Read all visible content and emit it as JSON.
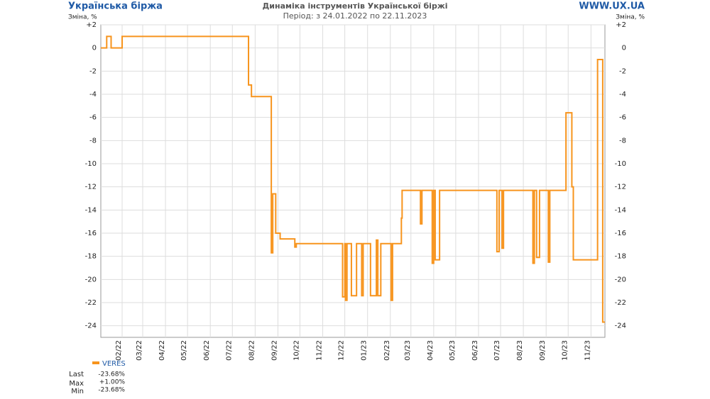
{
  "chart_data": {
    "type": "line",
    "brand": "Українська біржа",
    "site": "WWW.UX.UA",
    "title": "Динаміка інструментів Української біржі",
    "subtitle": "Період: з 24.01.2022 по 22.11.2023",
    "ylabel": "Зміна, %",
    "step": "after",
    "grid": true,
    "x": [
      "2022-01-03",
      "2022-01-11",
      "2022-01-17",
      "2022-02-01",
      "2022-07-23",
      "2022-07-27",
      "2022-08-23",
      "2022-08-25",
      "2022-08-29",
      "2022-09-04",
      "2022-09-24",
      "2022-09-26",
      "2022-11-28",
      "2022-12-01",
      "2022-12-02",
      "2022-12-04",
      "2022-12-10",
      "2022-12-17",
      "2022-12-24",
      "2022-12-26",
      "2023-01-05",
      "2023-01-13",
      "2023-01-15",
      "2023-01-19",
      "2023-02-02",
      "2023-02-04",
      "2023-02-16",
      "2023-02-17",
      "2023-03-14",
      "2023-03-16",
      "2023-03-30",
      "2023-04-01",
      "2023-04-03",
      "2023-04-09",
      "2023-06-26",
      "2023-06-29",
      "2023-07-03",
      "2023-07-05",
      "2023-08-14",
      "2023-08-16",
      "2023-08-19",
      "2023-08-23",
      "2023-09-04",
      "2023-09-06",
      "2023-09-28",
      "2023-10-06",
      "2023-10-08",
      "2023-11-10",
      "2023-11-17"
    ],
    "series": [
      {
        "name": "VERES",
        "color": "#f7941d",
        "values": [
          0,
          1,
          0,
          1,
          -3.2,
          -4.2,
          -17.7,
          -12.6,
          -16,
          -16.5,
          -17.2,
          -16.9,
          -21.5,
          -16.9,
          -21.8,
          -16.9,
          -21.4,
          -16.9,
          -21.4,
          -16.9,
          -21.4,
          -16.6,
          -21.4,
          -16.9,
          -21.8,
          -16.9,
          -14.7,
          -12.3,
          -15.2,
          -12.3,
          -18.6,
          -12.3,
          -18.3,
          -12.3,
          -17.6,
          -12.3,
          -17.3,
          -12.3,
          -18.6,
          -12.3,
          -18.1,
          -12.3,
          -18.5,
          -12.3,
          -5.6,
          -12,
          -18.3,
          -1,
          -23.68
        ]
      }
    ],
    "stats": [
      {
        "label": "Last",
        "value": "-23.68%"
      },
      {
        "label": "Max",
        "value": "+1.00%"
      },
      {
        "label": "Min",
        "value": "-23.68%"
      }
    ],
    "xlim": [
      "2022-01-03",
      "2023-11-20"
    ],
    "xticks": [
      {
        "value": "2022-02-01",
        "label": "02/22"
      },
      {
        "value": "2022-03-01",
        "label": "03/22"
      },
      {
        "value": "2022-04-01",
        "label": "04/22"
      },
      {
        "value": "2022-05-01",
        "label": "05/22"
      },
      {
        "value": "2022-06-01",
        "label": "06/22"
      },
      {
        "value": "2022-07-01",
        "label": "07/22"
      },
      {
        "value": "2022-08-01",
        "label": "08/22"
      },
      {
        "value": "2022-09-01",
        "label": "09/22"
      },
      {
        "value": "2022-10-01",
        "label": "10/22"
      },
      {
        "value": "2022-11-01",
        "label": "11/22"
      },
      {
        "value": "2022-12-01",
        "label": "12/22"
      },
      {
        "value": "2023-01-01",
        "label": "01/23"
      },
      {
        "value": "2023-02-01",
        "label": "02/23"
      },
      {
        "value": "2023-03-01",
        "label": "03/23"
      },
      {
        "value": "2023-04-01",
        "label": "04/23"
      },
      {
        "value": "2023-05-01",
        "label": "05/23"
      },
      {
        "value": "2023-06-01",
        "label": "06/23"
      },
      {
        "value": "2023-07-01",
        "label": "07/23"
      },
      {
        "value": "2023-08-01",
        "label": "08/23"
      },
      {
        "value": "2023-09-01",
        "label": "09/23"
      },
      {
        "value": "2023-10-01",
        "label": "10/23"
      },
      {
        "value": "2023-11-01",
        "label": "11/23"
      }
    ],
    "ylim": [
      -25,
      2
    ],
    "yticks": [
      {
        "value": 2,
        "label": "+2"
      },
      0,
      -2,
      -4,
      -6,
      -8,
      -10,
      -12,
      -14,
      -16,
      -18,
      -20,
      -22,
      -24
    ]
  }
}
